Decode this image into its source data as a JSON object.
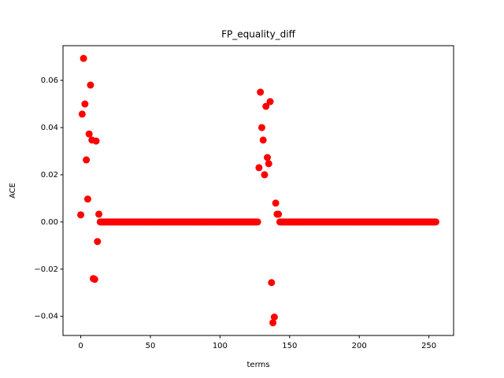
{
  "chart_data": {
    "type": "scatter",
    "title": "FP_equality_diff",
    "x_label": "terms",
    "y_label": "ACE",
    "color": "#ff0000",
    "x": [
      0,
      1,
      2,
      3,
      4,
      5,
      6,
      7,
      8,
      9,
      10,
      11,
      12,
      13,
      14,
      15,
      16,
      17,
      18,
      19,
      20,
      21,
      22,
      23,
      24,
      25,
      26,
      27,
      28,
      29,
      30,
      31,
      32,
      33,
      34,
      35,
      36,
      37,
      38,
      39,
      40,
      41,
      42,
      43,
      44,
      45,
      46,
      47,
      48,
      49,
      50,
      51,
      52,
      53,
      54,
      55,
      56,
      57,
      58,
      59,
      60,
      61,
      62,
      63,
      64,
      65,
      66,
      67,
      68,
      69,
      70,
      71,
      72,
      73,
      74,
      75,
      76,
      77,
      78,
      79,
      80,
      81,
      82,
      83,
      84,
      85,
      86,
      87,
      88,
      89,
      90,
      91,
      92,
      93,
      94,
      95,
      96,
      97,
      98,
      99,
      100,
      101,
      102,
      103,
      104,
      105,
      106,
      107,
      108,
      109,
      110,
      111,
      112,
      113,
      114,
      115,
      116,
      117,
      118,
      119,
      120,
      121,
      122,
      123,
      124,
      125,
      126,
      127,
      128,
      129,
      130,
      131,
      132,
      133,
      134,
      135,
      136,
      137,
      138,
      139,
      140,
      141,
      142,
      143,
      144,
      145,
      146,
      147,
      148,
      149,
      150,
      151,
      152,
      153,
      154,
      155,
      156,
      157,
      158,
      159,
      160,
      161,
      162,
      163,
      164,
      165,
      166,
      167,
      168,
      169,
      170,
      171,
      172,
      173,
      174,
      175,
      176,
      177,
      178,
      179,
      180,
      181,
      182,
      183,
      184,
      185,
      186,
      187,
      188,
      189,
      190,
      191,
      192,
      193,
      194,
      195,
      196,
      197,
      198,
      199,
      200,
      201,
      202,
      203,
      204,
      205,
      206,
      207,
      208,
      209,
      210,
      211,
      212,
      213,
      214,
      215,
      216,
      217,
      218,
      219,
      220,
      221,
      222,
      223,
      224,
      225,
      226,
      227,
      228,
      229,
      230,
      231,
      232,
      233,
      234,
      235,
      236,
      237,
      238,
      239,
      240,
      241,
      242,
      243,
      244,
      245,
      246,
      247,
      248,
      249,
      250,
      251,
      252,
      253,
      254,
      255
    ],
    "values": [
      0.003,
      0.0457,
      0.0693,
      0.05,
      0.0263,
      0.0097,
      0.0373,
      0.058,
      0.0347,
      -0.024,
      -0.0243,
      0.0343,
      -0.0083,
      0.0033,
      0,
      0,
      0,
      0,
      0,
      0,
      0,
      0,
      0,
      0,
      0,
      0,
      0,
      0,
      0,
      0,
      0,
      0,
      0,
      0,
      0,
      0,
      0,
      0,
      0,
      0,
      0,
      0,
      0,
      0,
      0,
      0,
      0,
      0,
      0,
      0,
      0,
      0,
      0,
      0,
      0,
      0,
      0,
      0,
      0,
      0,
      0,
      0,
      0,
      0,
      0,
      0,
      0,
      0,
      0,
      0,
      0,
      0,
      0,
      0,
      0,
      0,
      0,
      0,
      0,
      0,
      0,
      0,
      0,
      0,
      0,
      0,
      0,
      0,
      0,
      0,
      0,
      0,
      0,
      0,
      0,
      0,
      0,
      0,
      0,
      0,
      0,
      0,
      0,
      0,
      0,
      0,
      0,
      0,
      0,
      0,
      0,
      0,
      0,
      0,
      0,
      0,
      0,
      0,
      0,
      0,
      0,
      0,
      0,
      0,
      0,
      0,
      0,
      0,
      0.023,
      0.055,
      0.04,
      0.0347,
      0.02,
      0.049,
      0.0273,
      0.0247,
      0.051,
      -0.0257,
      -0.0427,
      -0.0403,
      0.008,
      0.0033,
      0.0033,
      0,
      0,
      0,
      0,
      0,
      0,
      0,
      0,
      0,
      0,
      0,
      0,
      0,
      0,
      0,
      0,
      0,
      0,
      0,
      0,
      0,
      0,
      0,
      0,
      0,
      0,
      0,
      0,
      0,
      0,
      0,
      0,
      0,
      0,
      0,
      0,
      0,
      0,
      0,
      0,
      0,
      0,
      0,
      0,
      0,
      0,
      0,
      0,
      0,
      0,
      0,
      0,
      0,
      0,
      0,
      0,
      0,
      0,
      0,
      0,
      0,
      0,
      0,
      0,
      0,
      0,
      0,
      0,
      0,
      0,
      0,
      0,
      0,
      0,
      0,
      0,
      0,
      0,
      0,
      0,
      0,
      0,
      0,
      0,
      0,
      0,
      0,
      0,
      0,
      0,
      0,
      0,
      0,
      0,
      0,
      0,
      0,
      0,
      0,
      0,
      0,
      0,
      0,
      0,
      0,
      0,
      0,
      0,
      0,
      0,
      0,
      0,
      0
    ],
    "xlim": [
      -12.75,
      267.75
    ],
    "xticks": [
      0,
      50,
      100,
      150,
      200,
      250
    ],
    "ylim": [
      -0.0481,
      0.0747
    ],
    "yticks": [
      {
        "value": -0.04,
        "label": "−0.04"
      },
      {
        "value": -0.02,
        "label": "−0.02"
      },
      {
        "value": 0,
        "label": "0.00"
      },
      0.02,
      0.04,
      0.06
    ]
  }
}
